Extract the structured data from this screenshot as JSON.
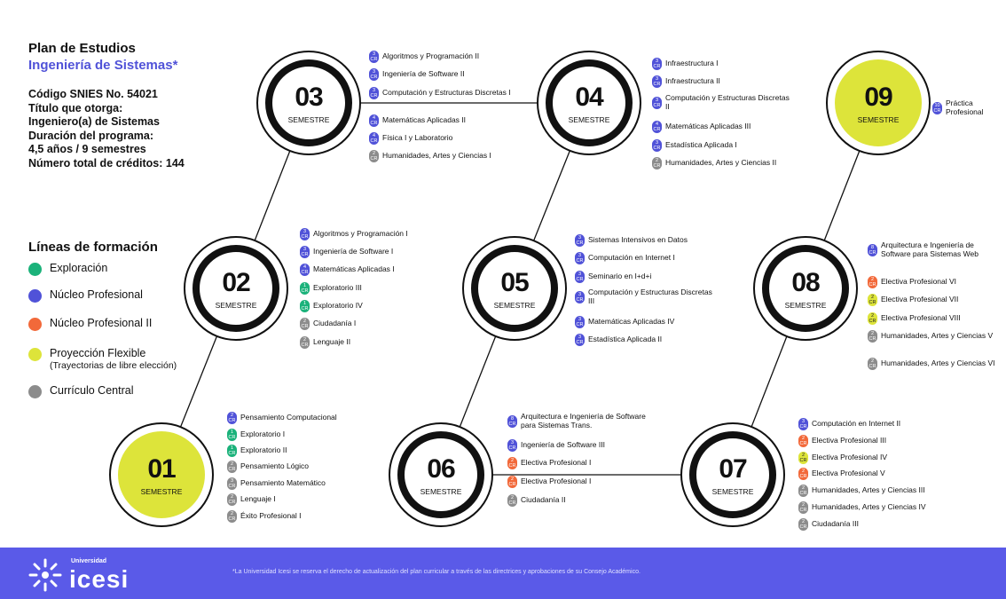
{
  "header": {
    "title": "Plan de Estudios",
    "program": "Ingeniería de Sistemas*",
    "info": [
      "Código SNIES No. 54021",
      "Título que otorga:",
      "Ingeniero(a) de Sistemas",
      "Duración del programa:",
      "4,5 años / 9 semestres",
      "Número total de créditos: 144"
    ]
  },
  "legend": {
    "title": "Líneas de formación",
    "items": [
      {
        "label": "Exploración",
        "sub": "",
        "color": "#1bb27a"
      },
      {
        "label": "Núcleo Profesional",
        "sub": "",
        "color": "#5052d8"
      },
      {
        "label": "Núcleo Profesional II",
        "sub": "",
        "color": "#f2693a"
      },
      {
        "label": "Proyección Flexible",
        "sub": "(Trayectorias de libre elección)",
        "color": "#dde43a"
      },
      {
        "label": "Currículo Central",
        "sub": "",
        "color": "#8c8c8c"
      }
    ]
  },
  "semesters": [
    {
      "num": "01",
      "label": "SEMESTRE",
      "highlight": true,
      "courses": [
        {
          "cr": "2",
          "line": "nucleo",
          "name": "Pensamiento Computacional"
        },
        {
          "cr": "1",
          "line": "exploracion",
          "name": "Exploratorio I"
        },
        {
          "cr": "1",
          "line": "exploracion",
          "name": "Exploratorio II"
        },
        {
          "cr": "2",
          "line": "central",
          "name": "Pensamiento Lógico"
        },
        {
          "cr": "3",
          "line": "central",
          "name": "Pensamiento Matemático"
        },
        {
          "cr": "2",
          "line": "central",
          "name": "Lenguaje I"
        },
        {
          "cr": "2",
          "line": "central",
          "name": "Éxito Profesional I"
        }
      ]
    },
    {
      "num": "02",
      "label": "SEMESTRE",
      "highlight": false,
      "courses": [
        {
          "cr": "3",
          "line": "nucleo",
          "name": "Algoritmos y Programación I"
        },
        {
          "cr": "3",
          "line": "nucleo",
          "name": "Ingeniería de Software I"
        },
        {
          "cr": "4",
          "line": "nucleo",
          "name": "Matemáticas Aplicadas I"
        },
        {
          "cr": "1",
          "line": "exploracion",
          "name": "Exploratorio III"
        },
        {
          "cr": "1",
          "line": "exploracion",
          "name": "Exploratorio IV"
        },
        {
          "cr": "2",
          "line": "central",
          "name": "Ciudadanía I"
        },
        {
          "cr": "2",
          "line": "central",
          "name": "Lenguaje II"
        }
      ]
    },
    {
      "num": "03",
      "label": "SEMESTRE",
      "highlight": false,
      "courses": [
        {
          "cr": "3",
          "line": "nucleo",
          "name": "Algoritmos y Programación II"
        },
        {
          "cr": "3",
          "line": "nucleo",
          "name": "Ingeniería de Software II"
        },
        {
          "cr": "3",
          "line": "nucleo",
          "name": "Computación y Estructuras Discretas I"
        },
        {
          "cr": "4",
          "line": "nucleo",
          "name": "Matemáticas Aplicadas II"
        },
        {
          "cr": "4",
          "line": "nucleo",
          "name": "Física I y Laboratorio"
        },
        {
          "cr": "2",
          "line": "central",
          "name": "Humanidades, Artes y Ciencias I"
        }
      ]
    },
    {
      "num": "04",
      "label": "SEMESTRE",
      "highlight": false,
      "courses": [
        {
          "cr": "3",
          "line": "nucleo",
          "name": "Infraestructura I"
        },
        {
          "cr": "3",
          "line": "nucleo",
          "name": "Infraestructura II"
        },
        {
          "cr": "3",
          "line": "nucleo",
          "name": "Computación y Estructuras Discretas II"
        },
        {
          "cr": "4",
          "line": "nucleo",
          "name": "Matemáticas Aplicadas III"
        },
        {
          "cr": "3",
          "line": "nucleo",
          "name": "Estadística Aplicada I"
        },
        {
          "cr": "2",
          "line": "central",
          "name": "Humanidades, Artes y Ciencias II"
        }
      ]
    },
    {
      "num": "05",
      "label": "SEMESTRE",
      "highlight": false,
      "courses": [
        {
          "cr": "3",
          "line": "nucleo",
          "name": "Sistemas Intensivos en Datos"
        },
        {
          "cr": "3",
          "line": "nucleo",
          "name": "Computación en Internet I"
        },
        {
          "cr": "3",
          "line": "nucleo",
          "name": "Seminario en I+d+i"
        },
        {
          "cr": "3",
          "line": "nucleo",
          "name": "Computación y Estructuras Discretas III"
        },
        {
          "cr": "3",
          "line": "nucleo",
          "name": "Matemáticas Aplicadas IV"
        },
        {
          "cr": "3",
          "line": "nucleo",
          "name": "Estadística Aplicada II"
        }
      ]
    },
    {
      "num": "06",
      "label": "SEMESTRE",
      "highlight": false,
      "courses": [
        {
          "cr": "8",
          "line": "nucleo",
          "name": "Arquitectura e Ingeniería de Software para Sistemas Trans."
        },
        {
          "cr": "3",
          "line": "nucleo",
          "name": "Ingeniería de Software III"
        },
        {
          "cr": "2",
          "line": "nucleo2",
          "name": "Electiva Profesional I"
        },
        {
          "cr": "2",
          "line": "nucleo2",
          "name": "Electiva Profesional I"
        },
        {
          "cr": "2",
          "line": "central",
          "name": "Ciudadanía II"
        }
      ]
    },
    {
      "num": "07",
      "label": "SEMESTRE",
      "highlight": false,
      "courses": [
        {
          "cr": "3",
          "line": "nucleo",
          "name": "Computación en Internet II"
        },
        {
          "cr": "2",
          "line": "nucleo2",
          "name": "Electiva Profesional III"
        },
        {
          "cr": "2",
          "line": "flexible",
          "name": "Electiva Profesional IV"
        },
        {
          "cr": "2",
          "line": "nucleo2",
          "name": "Electiva Profesional V"
        },
        {
          "cr": "2",
          "line": "central",
          "name": "Humanidades, Artes y Ciencias III"
        },
        {
          "cr": "2",
          "line": "central",
          "name": "Humanidades, Artes y Ciencias IV"
        },
        {
          "cr": "2",
          "line": "central",
          "name": "Ciudadanía III"
        }
      ]
    },
    {
      "num": "08",
      "label": "SEMESTRE",
      "highlight": false,
      "courses": [
        {
          "cr": "8",
          "line": "nucleo",
          "name": "Arquitectura e Ingeniería de Software para Sistemas Web"
        },
        {
          "cr": "2",
          "line": "nucleo2",
          "name": "Electiva Profesional VI"
        },
        {
          "cr": "2",
          "line": "flexible",
          "name": "Electiva Profesional VII"
        },
        {
          "cr": "2",
          "line": "flexible",
          "name": "Electiva Profesional VIII"
        },
        {
          "cr": "2",
          "line": "central",
          "name": "Humanidades, Artes y Ciencias V"
        },
        {
          "cr": "2",
          "line": "central",
          "name": "Humanidades, Artes y Ciencias VI"
        }
      ]
    },
    {
      "num": "09",
      "label": "SEMESTRE",
      "highlight": true,
      "courses": [
        {
          "cr": "10",
          "line": "nucleo",
          "name": "Práctica Profesional"
        }
      ]
    }
  ],
  "credit_unit": "CR",
  "colors": {
    "exploracion": "#1bb27a",
    "nucleo": "#5052d8",
    "nucleo2": "#f2693a",
    "flexible": "#dde43a",
    "central": "#8c8c8c",
    "highlight_fill": "#dde43a",
    "footer": "#5a5ae8"
  },
  "footer": {
    "brand_small": "Universidad",
    "brand": "icesi",
    "note": "*La Universidad Icesi se reserva el derecho de actualización del plan curricular a través de las directrices y aprobaciones de su Consejo Académico."
  }
}
